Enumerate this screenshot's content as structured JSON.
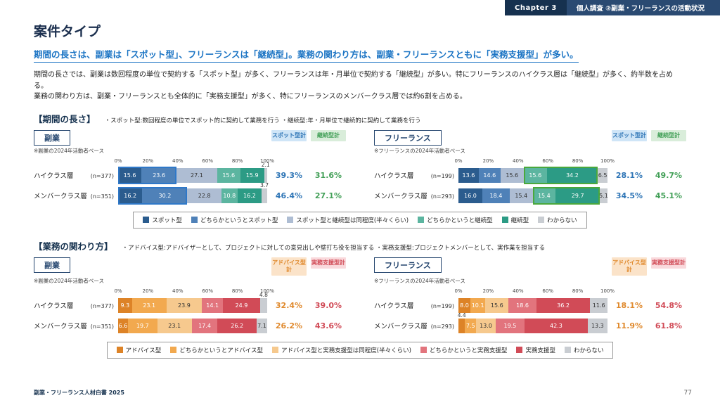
{
  "header": {
    "chapter_label": "Chapter 3",
    "chapter_title": "個人調査 ②副業・フリーランスの活動状況"
  },
  "page": {
    "title": "案件タイプ",
    "subtitle": "期間の長さは、副業は「スポット型」、フリーランスは「継続型」。業務の関わり方は、副業・フリーランスともに「実務支援型」が多い。",
    "body_line1": "期間の長さでは、副業は数回程度の単位で契約する「スポット型」が多く、フリーランスは年・月単位で契約する「継続型」が多い。特にフリーランスのハイクラス層は「継続型」が多く、約半数を占める。",
    "body_line2": "業務の関わり方は、副業・フリーランスとも全体的に「実務支援型」が多く、特にフリーランスのメンバークラス層では約6割を占める。",
    "footer_left": "副業・フリーランス人材白書 2025",
    "page_number": "77"
  },
  "axis": {
    "ticks": [
      "0%",
      "20%",
      "40%",
      "60%",
      "80%",
      "100%"
    ]
  },
  "section1": {
    "heading": "【期間の長さ】",
    "note": "・スポット型:数回程度の単位でスポット的に契約して業務を行う ・継続型:年・月単位で継続的に契約して業務を行う",
    "colors": [
      "#2b5c8e",
      "#4f81b8",
      "#aebdd3",
      "#5cb5a0",
      "#2c9b85",
      "#c9cdd2"
    ],
    "total_headers": [
      {
        "label": "スポット型計",
        "bg": "#cfe5f7",
        "color": "#2e75b6"
      },
      {
        "label": "継続型計",
        "bg": "#d9edda",
        "color": "#43a058"
      }
    ],
    "charts": [
      {
        "group": "副業",
        "base": "※副業の2024年活動者ベース",
        "highlight": {
          "start": 0,
          "count": 2,
          "color": "#2f78c8"
        },
        "rows": [
          {
            "label": "ハイクラス層",
            "n": "(n=377)",
            "values": [
              15.6,
              23.6,
              27.1,
              15.6,
              15.9,
              2.1
            ],
            "totals": [
              "39.3%",
              "31.6%"
            ]
          },
          {
            "label": "メンバークラス層",
            "n": "(n=351)",
            "values": [
              16.2,
              30.2,
              22.8,
              10.8,
              16.2,
              3.7
            ],
            "totals": [
              "46.4%",
              "27.1%"
            ]
          }
        ]
      },
      {
        "group": "フリーランス",
        "base": "※フリーランスの2024年活動者ベース",
        "highlight": {
          "start": 3,
          "count": 2,
          "color": "#4aa83c"
        },
        "rows": [
          {
            "label": "ハイクラス層",
            "n": "(n=199)",
            "values": [
              13.6,
              14.6,
              15.6,
              15.6,
              34.2,
              6.5
            ],
            "totals": [
              "28.1%",
              "49.7%"
            ]
          },
          {
            "label": "メンバークラス層",
            "n": "(n=293)",
            "values": [
              16.0,
              18.4,
              15.4,
              15.4,
              29.7,
              5.1
            ],
            "totals": [
              "34.5%",
              "45.1%"
            ]
          }
        ]
      }
    ],
    "legend": [
      "スポット型",
      "どちらかというとスポット型",
      "スポット型と継続型は同程度(半々くらい)",
      "どちらかというと継続型",
      "継続型",
      "わからない"
    ]
  },
  "section2": {
    "heading": "【業務の関わり方】",
    "note": "・アドバイス型:アドバイザーとして、プロジェクトに対しての意見出しや壁打ち役を担当する ・実務支援型:プロジェクトメンバーとして、実作業を担当する",
    "colors": [
      "#dd8327",
      "#f2a94f",
      "#f6c98e",
      "#e2747d",
      "#d14b57",
      "#c9cdd2"
    ],
    "total_headers": [
      {
        "label": "アドバイス型計",
        "bg": "#fbe3c9",
        "color": "#e08a2e"
      },
      {
        "label": "実務支援型計",
        "bg": "#f9d9dc",
        "color": "#d14b57"
      }
    ],
    "charts": [
      {
        "group": "副業",
        "base": "※副業の2024年活動者ベース",
        "highlight": null,
        "rows": [
          {
            "label": "ハイクラス層",
            "n": "(n=377)",
            "values": [
              9.3,
              23.1,
              23.9,
              14.1,
              24.9,
              4.8
            ],
            "totals": [
              "32.4%",
              "39.0%"
            ]
          },
          {
            "label": "メンバークラス層",
            "n": "(n=351)",
            "values": [
              6.6,
              19.7,
              23.1,
              17.4,
              26.2,
              7.1
            ],
            "totals": [
              "26.2%",
              "43.6%"
            ]
          }
        ]
      },
      {
        "group": "フリーランス",
        "base": "※フリーランスの2024年活動者ベース",
        "highlight": null,
        "rows": [
          {
            "label": "ハイクラス層",
            "n": "(n=199)",
            "values": [
              8.0,
              10.1,
              15.6,
              18.6,
              36.2,
              11.6
            ],
            "totals": [
              "18.1%",
              "54.8%"
            ]
          },
          {
            "label": "メンバークラス層",
            "n": "(n=293)",
            "values": [
              4.4,
              7.5,
              13.0,
              19.5,
              42.3,
              13.3
            ],
            "totals": [
              "11.9%",
              "61.8%"
            ]
          }
        ]
      }
    ],
    "legend": [
      "アドバイス型",
      "どちらかというとアドバイス型",
      "アドバイス型と実務支援型は同程度(半々くらい)",
      "どちらかというと実務支援型",
      "実務支援型",
      "わからない"
    ]
  },
  "chart_data": [
    {
      "type": "bar",
      "stacked": true,
      "orientation": "horizontal",
      "title": "期間の長さ × 副業",
      "categories": [
        "ハイクラス層 (n=377)",
        "メンバークラス層 (n=351)"
      ],
      "series": [
        {
          "name": "スポット型",
          "values": [
            15.6,
            16.2
          ]
        },
        {
          "name": "どちらかというとスポット型",
          "values": [
            23.6,
            30.2
          ]
        },
        {
          "name": "スポット型と継続型は同程度(半々くらい)",
          "values": [
            27.1,
            22.8
          ]
        },
        {
          "name": "どちらかというと継続型",
          "values": [
            15.6,
            10.8
          ]
        },
        {
          "name": "継続型",
          "values": [
            15.9,
            16.2
          ]
        },
        {
          "name": "わからない",
          "values": [
            2.1,
            3.7
          ]
        }
      ],
      "totals": [
        {
          "name": "スポット型計",
          "values": [
            "39.3%",
            "46.4%"
          ]
        },
        {
          "name": "継続型計",
          "values": [
            "31.6%",
            "27.1%"
          ]
        }
      ],
      "xlim": [
        0,
        100
      ],
      "xticks": [
        "0%",
        "20%",
        "40%",
        "60%",
        "80%",
        "100%"
      ],
      "legend_position": "bottom"
    },
    {
      "type": "bar",
      "stacked": true,
      "orientation": "horizontal",
      "title": "期間の長さ × フリーランス",
      "categories": [
        "ハイクラス層 (n=199)",
        "メンバークラス層 (n=293)"
      ],
      "series": [
        {
          "name": "スポット型",
          "values": [
            13.6,
            16.0
          ]
        },
        {
          "name": "どちらかというとスポット型",
          "values": [
            14.6,
            18.4
          ]
        },
        {
          "name": "スポット型と継続型は同程度(半々くらい)",
          "values": [
            15.6,
            15.4
          ]
        },
        {
          "name": "どちらかというと継続型",
          "values": [
            15.6,
            15.4
          ]
        },
        {
          "name": "継続型",
          "values": [
            34.2,
            29.7
          ]
        },
        {
          "name": "わからない",
          "values": [
            6.5,
            5.1
          ]
        }
      ],
      "totals": [
        {
          "name": "スポット型計",
          "values": [
            "28.1%",
            "34.5%"
          ]
        },
        {
          "name": "継続型計",
          "values": [
            "49.7%",
            "45.1%"
          ]
        }
      ],
      "xlim": [
        0,
        100
      ],
      "xticks": [
        "0%",
        "20%",
        "40%",
        "60%",
        "80%",
        "100%"
      ],
      "legend_position": "bottom"
    },
    {
      "type": "bar",
      "stacked": true,
      "orientation": "horizontal",
      "title": "業務の関わり方 × 副業",
      "categories": [
        "ハイクラス層 (n=377)",
        "メンバークラス層 (n=351)"
      ],
      "series": [
        {
          "name": "アドバイス型",
          "values": [
            9.3,
            6.6
          ]
        },
        {
          "name": "どちらかというとアドバイス型",
          "values": [
            23.1,
            19.7
          ]
        },
        {
          "name": "アドバイス型と実務支援型は同程度(半々くらい)",
          "values": [
            23.9,
            23.1
          ]
        },
        {
          "name": "どちらかというと実務支援型",
          "values": [
            14.1,
            17.4
          ]
        },
        {
          "name": "実務支援型",
          "values": [
            24.9,
            26.2
          ]
        },
        {
          "name": "わからない",
          "values": [
            4.8,
            7.1
          ]
        }
      ],
      "totals": [
        {
          "name": "アドバイス型計",
          "values": [
            "32.4%",
            "26.2%"
          ]
        },
        {
          "name": "実務支援型計",
          "values": [
            "39.0%",
            "43.6%"
          ]
        }
      ],
      "xlim": [
        0,
        100
      ],
      "xticks": [
        "0%",
        "20%",
        "40%",
        "60%",
        "80%",
        "100%"
      ],
      "legend_position": "bottom"
    },
    {
      "type": "bar",
      "stacked": true,
      "orientation": "horizontal",
      "title": "業務の関わり方 × フリーランス",
      "categories": [
        "ハイクラス層 (n=199)",
        "メンバークラス層 (n=293)"
      ],
      "series": [
        {
          "name": "アドバイス型",
          "values": [
            8.0,
            4.4
          ]
        },
        {
          "name": "どちらかというとアドバイス型",
          "values": [
            10.1,
            7.5
          ]
        },
        {
          "name": "アドバイス型と実務支援型は同程度(半々くらい)",
          "values": [
            15.6,
            13.0
          ]
        },
        {
          "name": "どちらかというと実務支援型",
          "values": [
            18.6,
            19.5
          ]
        },
        {
          "name": "実務支援型",
          "values": [
            36.2,
            42.3
          ]
        },
        {
          "name": "わからない",
          "values": [
            11.6,
            13.3
          ]
        }
      ],
      "totals": [
        {
          "name": "アドバイス型計",
          "values": [
            "18.1%",
            "11.9%"
          ]
        },
        {
          "name": "実務支援型計",
          "values": [
            "54.8%",
            "61.8%"
          ]
        }
      ],
      "xlim": [
        0,
        100
      ],
      "xticks": [
        "0%",
        "20%",
        "40%",
        "60%",
        "80%",
        "100%"
      ],
      "legend_position": "bottom"
    }
  ]
}
